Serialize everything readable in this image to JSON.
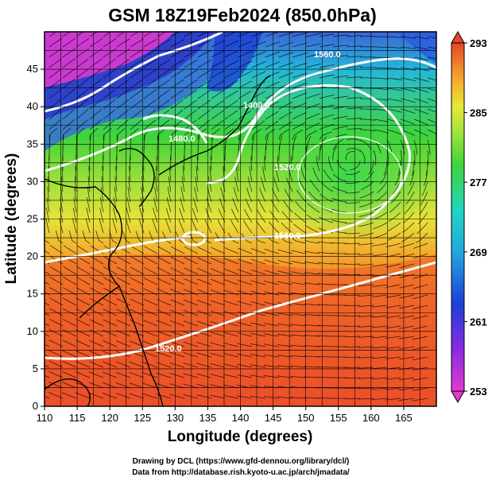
{
  "title": "GSM 18Z19Feb2024 (850.0hPa)",
  "xlabel": "Longitude (degrees)",
  "ylabel": "Latitude  (degrees)",
  "x_ticks": [
    "110",
    "115",
    "120",
    "125",
    "130",
    "135",
    "140",
    "145",
    "150",
    "155",
    "160",
    "165"
  ],
  "y_ticks": [
    "0",
    "5",
    "10",
    "15",
    "20",
    "25",
    "30",
    "35",
    "40",
    "45"
  ],
  "colorbar": {
    "ticks": [
      "293",
      "285",
      "277",
      "269",
      "261",
      "253"
    ]
  },
  "contour_labels": [
    "1520.0",
    "1560.0",
    "1480.0",
    "1520.0",
    "1400.0",
    "1560.0"
  ],
  "credits": {
    "line1": "Drawing by DCL (https://www.gfd-dennou.org/library/dcl/)",
    "line2": "Data from http://database.rish.kyoto-u.ac.jp/arch/jmadata/"
  },
  "colors": {
    "warm": "#e8442a",
    "orange": "#f39a2a",
    "yellow": "#e9e63a",
    "green": "#3fd43a",
    "cyan": "#21c7d6",
    "blue": "#1e3fd6",
    "magenta": "#e84fd6",
    "contour": "#ffffff"
  },
  "chart_data": {
    "type": "heatmap",
    "title": "GSM 18Z19Feb2024 (850.0hPa)",
    "xlabel": "Longitude (degrees)",
    "ylabel": "Latitude  (degrees)",
    "xlim": [
      110,
      170
    ],
    "ylim": [
      0,
      50
    ],
    "color_range": [
      253,
      293
    ],
    "overlays": [
      "temperature shading",
      "geopotential height contours",
      "wind streamlines",
      "coastlines",
      "grid"
    ]
  }
}
